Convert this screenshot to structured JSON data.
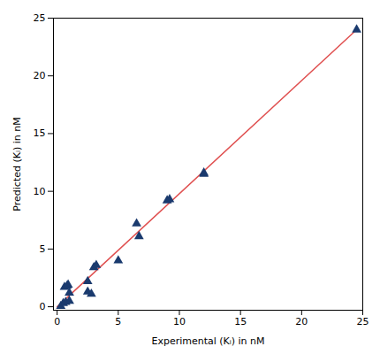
{
  "chart_data": {
    "type": "scatter",
    "xlabel": "Experimental (Kᵢ) in nM",
    "ylabel": "Predicted (Kᵢ) in nM",
    "xlim": [
      -0.3,
      25
    ],
    "ylim": [
      -0.3,
      25
    ],
    "xticks": [
      0,
      5,
      10,
      15,
      20,
      25
    ],
    "yticks": [
      0,
      5,
      10,
      15,
      20,
      25
    ],
    "grid": false,
    "series": [
      {
        "type": "line",
        "color": "#e05050",
        "line_style": "solid",
        "x": [
          0,
          24.5
        ],
        "values": [
          0,
          24.0
        ]
      },
      {
        "type": "scatter",
        "color": "#1a3a6e",
        "marker": "triangle",
        "x": [
          0.3,
          0.5,
          0.6,
          0.7,
          0.8,
          0.9,
          1.0,
          1.0,
          2.5,
          2.5,
          2.8,
          3.0,
          3.2,
          5.0,
          6.5,
          6.7,
          9.0,
          9.2,
          12.0,
          12.0,
          24.5
        ],
        "values": [
          0.05,
          0.3,
          1.7,
          0.4,
          1.8,
          1.9,
          0.5,
          1.2,
          1.3,
          2.2,
          1.1,
          3.4,
          3.6,
          4.0,
          7.2,
          6.1,
          9.2,
          9.3,
          11.5,
          11.6,
          24.0
        ]
      }
    ]
  }
}
